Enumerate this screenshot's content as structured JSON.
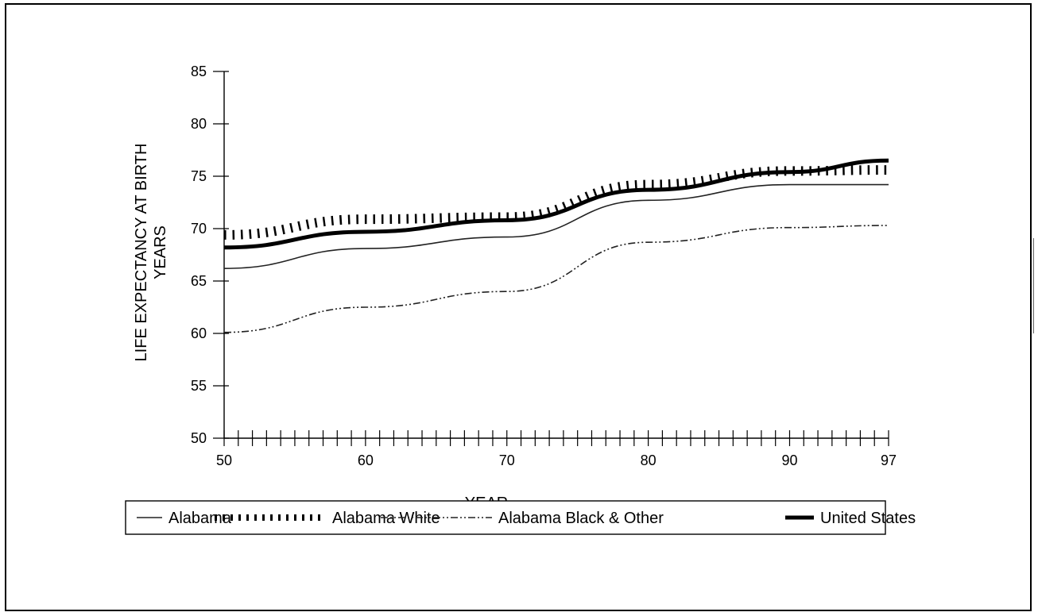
{
  "chart_data": {
    "type": "line",
    "title": "",
    "xlabel": "YEAR",
    "ylabel": [
      "LIFE EXPECTANCY AT BIRTH",
      "YEARS"
    ],
    "xlim": [
      50,
      97
    ],
    "ylim": [
      50,
      85
    ],
    "x_ticks": [
      50,
      60,
      70,
      80,
      90,
      97
    ],
    "x_tick_labels": [
      "50",
      "60",
      "70",
      "80",
      "90",
      "97"
    ],
    "y_ticks": [
      50,
      55,
      60,
      65,
      70,
      75,
      80,
      85
    ],
    "y_tick_labels": [
      "50",
      "55",
      "60",
      "65",
      "70",
      "75",
      "80",
      "85"
    ],
    "grid": false,
    "legend_position": "bottom",
    "x": [
      50,
      60,
      70,
      80,
      90,
      97
    ],
    "series": [
      {
        "name": "Alabama",
        "style": "thin-solid",
        "values": [
          66.2,
          68.1,
          69.2,
          72.7,
          74.2,
          74.2
        ]
      },
      {
        "name": "Alabama White",
        "style": "dotted-thick",
        "values": [
          69.4,
          70.9,
          71.1,
          74.2,
          75.5,
          75.6
        ]
      },
      {
        "name": "Alabama Black & Other",
        "style": "dash-dot",
        "values": [
          60.1,
          62.5,
          64.0,
          68.7,
          70.1,
          70.3
        ]
      },
      {
        "name": "United States",
        "style": "thick-solid",
        "values": [
          68.2,
          69.7,
          70.8,
          73.7,
          75.4,
          76.5
        ]
      }
    ]
  }
}
